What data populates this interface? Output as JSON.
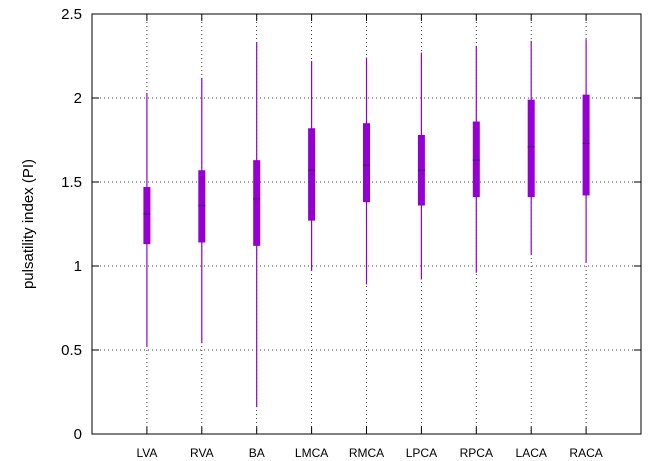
{
  "chart_data": {
    "type": "boxplot",
    "title": "",
    "xlabel": "",
    "ylabel": "pulsatility index (PI)",
    "ylim": [
      0,
      2.5
    ],
    "yticks": [
      "0",
      "0.5",
      "1",
      "1.5",
      "2",
      "2.5"
    ],
    "yticks_values": [
      0,
      0.5,
      1,
      1.5,
      2,
      2.5
    ],
    "grid": true,
    "grid_style": "dotted",
    "categories": [
      "LVA",
      "RVA",
      "BA",
      "LMCA",
      "RMCA",
      "LPCA",
      "RPCA",
      "LACA",
      "RACA"
    ],
    "min": [
      0.52,
      0.54,
      0.16,
      0.97,
      0.89,
      0.92,
      0.96,
      1.07,
      1.02
    ],
    "q1": [
      1.13,
      1.14,
      1.12,
      1.27,
      1.38,
      1.36,
      1.41,
      1.41,
      1.42
    ],
    "median": [
      1.31,
      1.36,
      1.4,
      1.57,
      1.6,
      1.57,
      1.63,
      1.71,
      1.73
    ],
    "q3": [
      1.47,
      1.57,
      1.63,
      1.82,
      1.85,
      1.78,
      1.86,
      1.99,
      2.02
    ],
    "max": [
      2.03,
      2.12,
      2.33,
      2.22,
      2.24,
      2.27,
      2.31,
      2.34,
      2.35
    ],
    "color": "#9400d3",
    "median_color": "#5a0080"
  }
}
